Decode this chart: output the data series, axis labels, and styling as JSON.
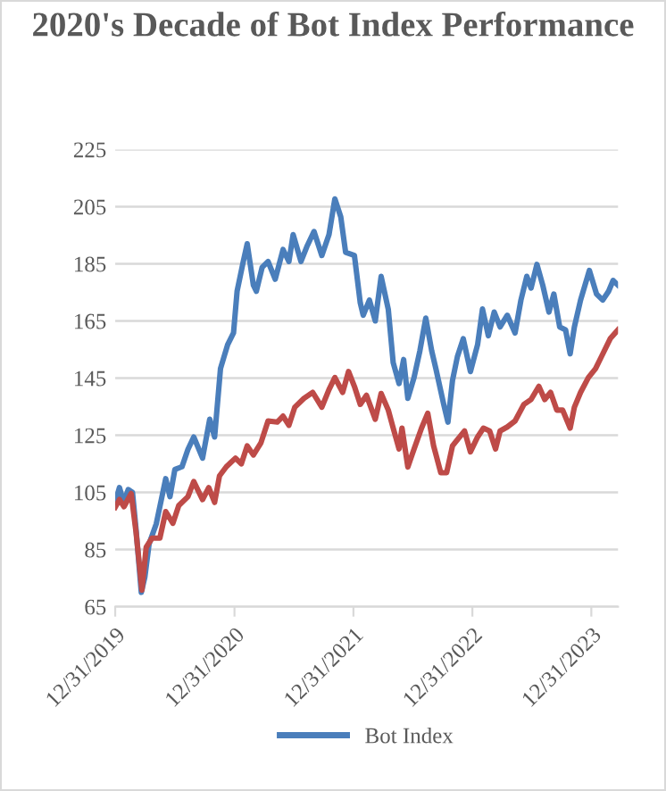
{
  "chart_data": {
    "type": "line",
    "title": "2020's Decade of Bot Index Performance",
    "xlim": [
      "2019-12-31",
      "2024-03-22"
    ],
    "xticks": [
      {
        "value": "2019-12-31",
        "label": "12/31/2019"
      },
      {
        "value": "2020-12-31",
        "label": "12/31/2020"
      },
      {
        "value": "2021-12-31",
        "label": "12/31/2021"
      },
      {
        "value": "2022-12-31",
        "label": "12/31/2022"
      },
      {
        "value": "2023-12-31",
        "label": "12/31/2023"
      }
    ],
    "ylim": [
      65,
      225
    ],
    "yticks": [
      65,
      85,
      105,
      125,
      145,
      165,
      185,
      205,
      225
    ],
    "grid": "y",
    "legend": "bottom",
    "marker": "none",
    "line_style": "solid",
    "series": [
      {
        "name": "Bot Index",
        "color": "#4a7ebb",
        "x": [
          "2019-12-31",
          "2020-01-13",
          "2020-01-26",
          "2020-02-09",
          "2020-02-22",
          "2020-03-04",
          "2020-03-20",
          "2020-03-31",
          "2020-04-13",
          "2020-05-05",
          "2020-06-03",
          "2020-06-16",
          "2020-07-01",
          "2020-07-23",
          "2020-08-10",
          "2020-08-28",
          "2020-09-24",
          "2020-10-16",
          "2020-10-31",
          "2020-11-18",
          "2020-12-10",
          "2020-12-28",
          "2021-01-08",
          "2021-01-27",
          "2021-02-08",
          "2021-02-27",
          "2021-03-08",
          "2021-03-26",
          "2021-04-13",
          "2021-05-05",
          "2021-05-29",
          "2021-06-16",
          "2021-06-29",
          "2021-07-23",
          "2021-08-10",
          "2021-09-01",
          "2021-09-25",
          "2021-10-17",
          "2021-11-04",
          "2021-11-22",
          "2021-12-07",
          "2022-01-03",
          "2022-01-21",
          "2022-01-30",
          "2022-02-18",
          "2022-03-08",
          "2022-03-26",
          "2022-04-17",
          "2022-05-02",
          "2022-05-20",
          "2022-06-03",
          "2022-06-16",
          "2022-07-05",
          "2022-07-23",
          "2022-08-10",
          "2022-08-28",
          "2022-09-10",
          "2022-10-04",
          "2022-10-17",
          "2022-10-31",
          "2022-11-15",
          "2022-12-03",
          "2022-12-25",
          "2023-01-16",
          "2023-01-31",
          "2023-02-18",
          "2023-03-08",
          "2023-03-26",
          "2023-04-17",
          "2023-05-11",
          "2023-05-29",
          "2023-06-16",
          "2023-06-29",
          "2023-07-17",
          "2023-08-04",
          "2023-08-23",
          "2023-09-07",
          "2023-09-25",
          "2023-10-13",
          "2023-10-27",
          "2023-11-09",
          "2023-11-28",
          "2023-12-25",
          "2024-01-16",
          "2024-02-04",
          "2024-02-22",
          "2024-03-07",
          "2024-03-22"
        ],
        "values": [
          101.5,
          106.7,
          101.5,
          106,
          105,
          92,
          70,
          75.4,
          87,
          94,
          109.8,
          103.5,
          113,
          114,
          120,
          124.4,
          117,
          130.6,
          124.4,
          148.3,
          156.7,
          160.8,
          175.4,
          185.8,
          192,
          177.5,
          175.4,
          183.8,
          185.8,
          179.6,
          190,
          185.8,
          195.2,
          185.8,
          191,
          196.3,
          187.9,
          195.2,
          207.7,
          201.5,
          189,
          187.9,
          171.3,
          167,
          172.3,
          165,
          180.6,
          169,
          150.4,
          143.1,
          151.5,
          137.9,
          145.2,
          154.6,
          166,
          154.6,
          148.3,
          135.8,
          129.6,
          144.2,
          152.5,
          158.8,
          147.3,
          156.7,
          169.2,
          159.8,
          168.1,
          162.9,
          167,
          160.8,
          172.3,
          180.6,
          176.5,
          184.8,
          177.5,
          168.1,
          174.4,
          162.9,
          161.9,
          153.5,
          162.9,
          172.3,
          182.7,
          174.4,
          172.3,
          175.4,
          179.2,
          177.5
        ]
      },
      {
        "color": "#be4b48",
        "x": [
          "2019-12-31",
          "2020-01-13",
          "2020-01-27",
          "2020-02-18",
          "2020-03-04",
          "2020-03-22",
          "2020-04-04",
          "2020-04-22",
          "2020-05-16",
          "2020-06-03",
          "2020-06-25",
          "2020-07-13",
          "2020-08-10",
          "2020-08-28",
          "2020-09-24",
          "2020-10-13",
          "2020-10-31",
          "2020-11-15",
          "2020-12-06",
          "2021-01-03",
          "2021-01-21",
          "2021-02-08",
          "2021-02-27",
          "2021-03-22",
          "2021-04-13",
          "2021-05-11",
          "2021-05-29",
          "2021-06-16",
          "2021-07-04",
          "2021-08-01",
          "2021-08-28",
          "2021-09-25",
          "2021-10-17",
          "2021-11-04",
          "2021-11-28",
          "2021-12-16",
          "2022-01-03",
          "2022-01-21",
          "2022-02-09",
          "2022-03-08",
          "2022-03-26",
          "2022-04-17",
          "2022-05-02",
          "2022-05-20",
          "2022-05-29",
          "2022-06-16",
          "2022-07-05",
          "2022-07-28",
          "2022-08-16",
          "2022-09-03",
          "2022-09-25",
          "2022-10-13",
          "2022-10-31",
          "2022-11-22",
          "2022-12-07",
          "2022-12-25",
          "2023-01-16",
          "2023-02-03",
          "2023-02-22",
          "2023-03-12",
          "2023-03-26",
          "2023-04-17",
          "2023-05-11",
          "2023-06-07",
          "2023-06-29",
          "2023-07-23",
          "2023-08-10",
          "2023-08-28",
          "2023-09-16",
          "2023-10-04",
          "2023-10-27",
          "2023-11-09",
          "2023-11-28",
          "2023-12-22",
          "2024-01-13",
          "2024-01-31",
          "2024-02-27",
          "2024-03-22"
        ],
        "values": [
          99.8,
          102.5,
          100,
          104.6,
          91,
          70.8,
          85.8,
          89,
          89,
          98.3,
          94.2,
          100.4,
          103.5,
          108.8,
          102.5,
          106.7,
          101.5,
          110.8,
          114,
          117,
          115,
          121.3,
          118.1,
          122.3,
          130,
          129.6,
          131.7,
          128.5,
          134.8,
          137.9,
          140,
          134.8,
          141,
          145.2,
          140,
          147.3,
          142.1,
          135.8,
          139,
          130.6,
          139.6,
          133.8,
          127.5,
          120.2,
          127.5,
          113.9,
          120.2,
          127.5,
          132.7,
          121.3,
          111.9,
          111.9,
          121.3,
          124.4,
          126.5,
          119.2,
          124.4,
          127.5,
          126.5,
          120.2,
          126.5,
          127.9,
          130,
          135.8,
          137.5,
          142.1,
          137.5,
          140,
          133.8,
          133.8,
          127.5,
          134.8,
          140,
          145.2,
          148.3,
          152.5,
          158.8,
          161.9
        ]
      }
    ]
  }
}
